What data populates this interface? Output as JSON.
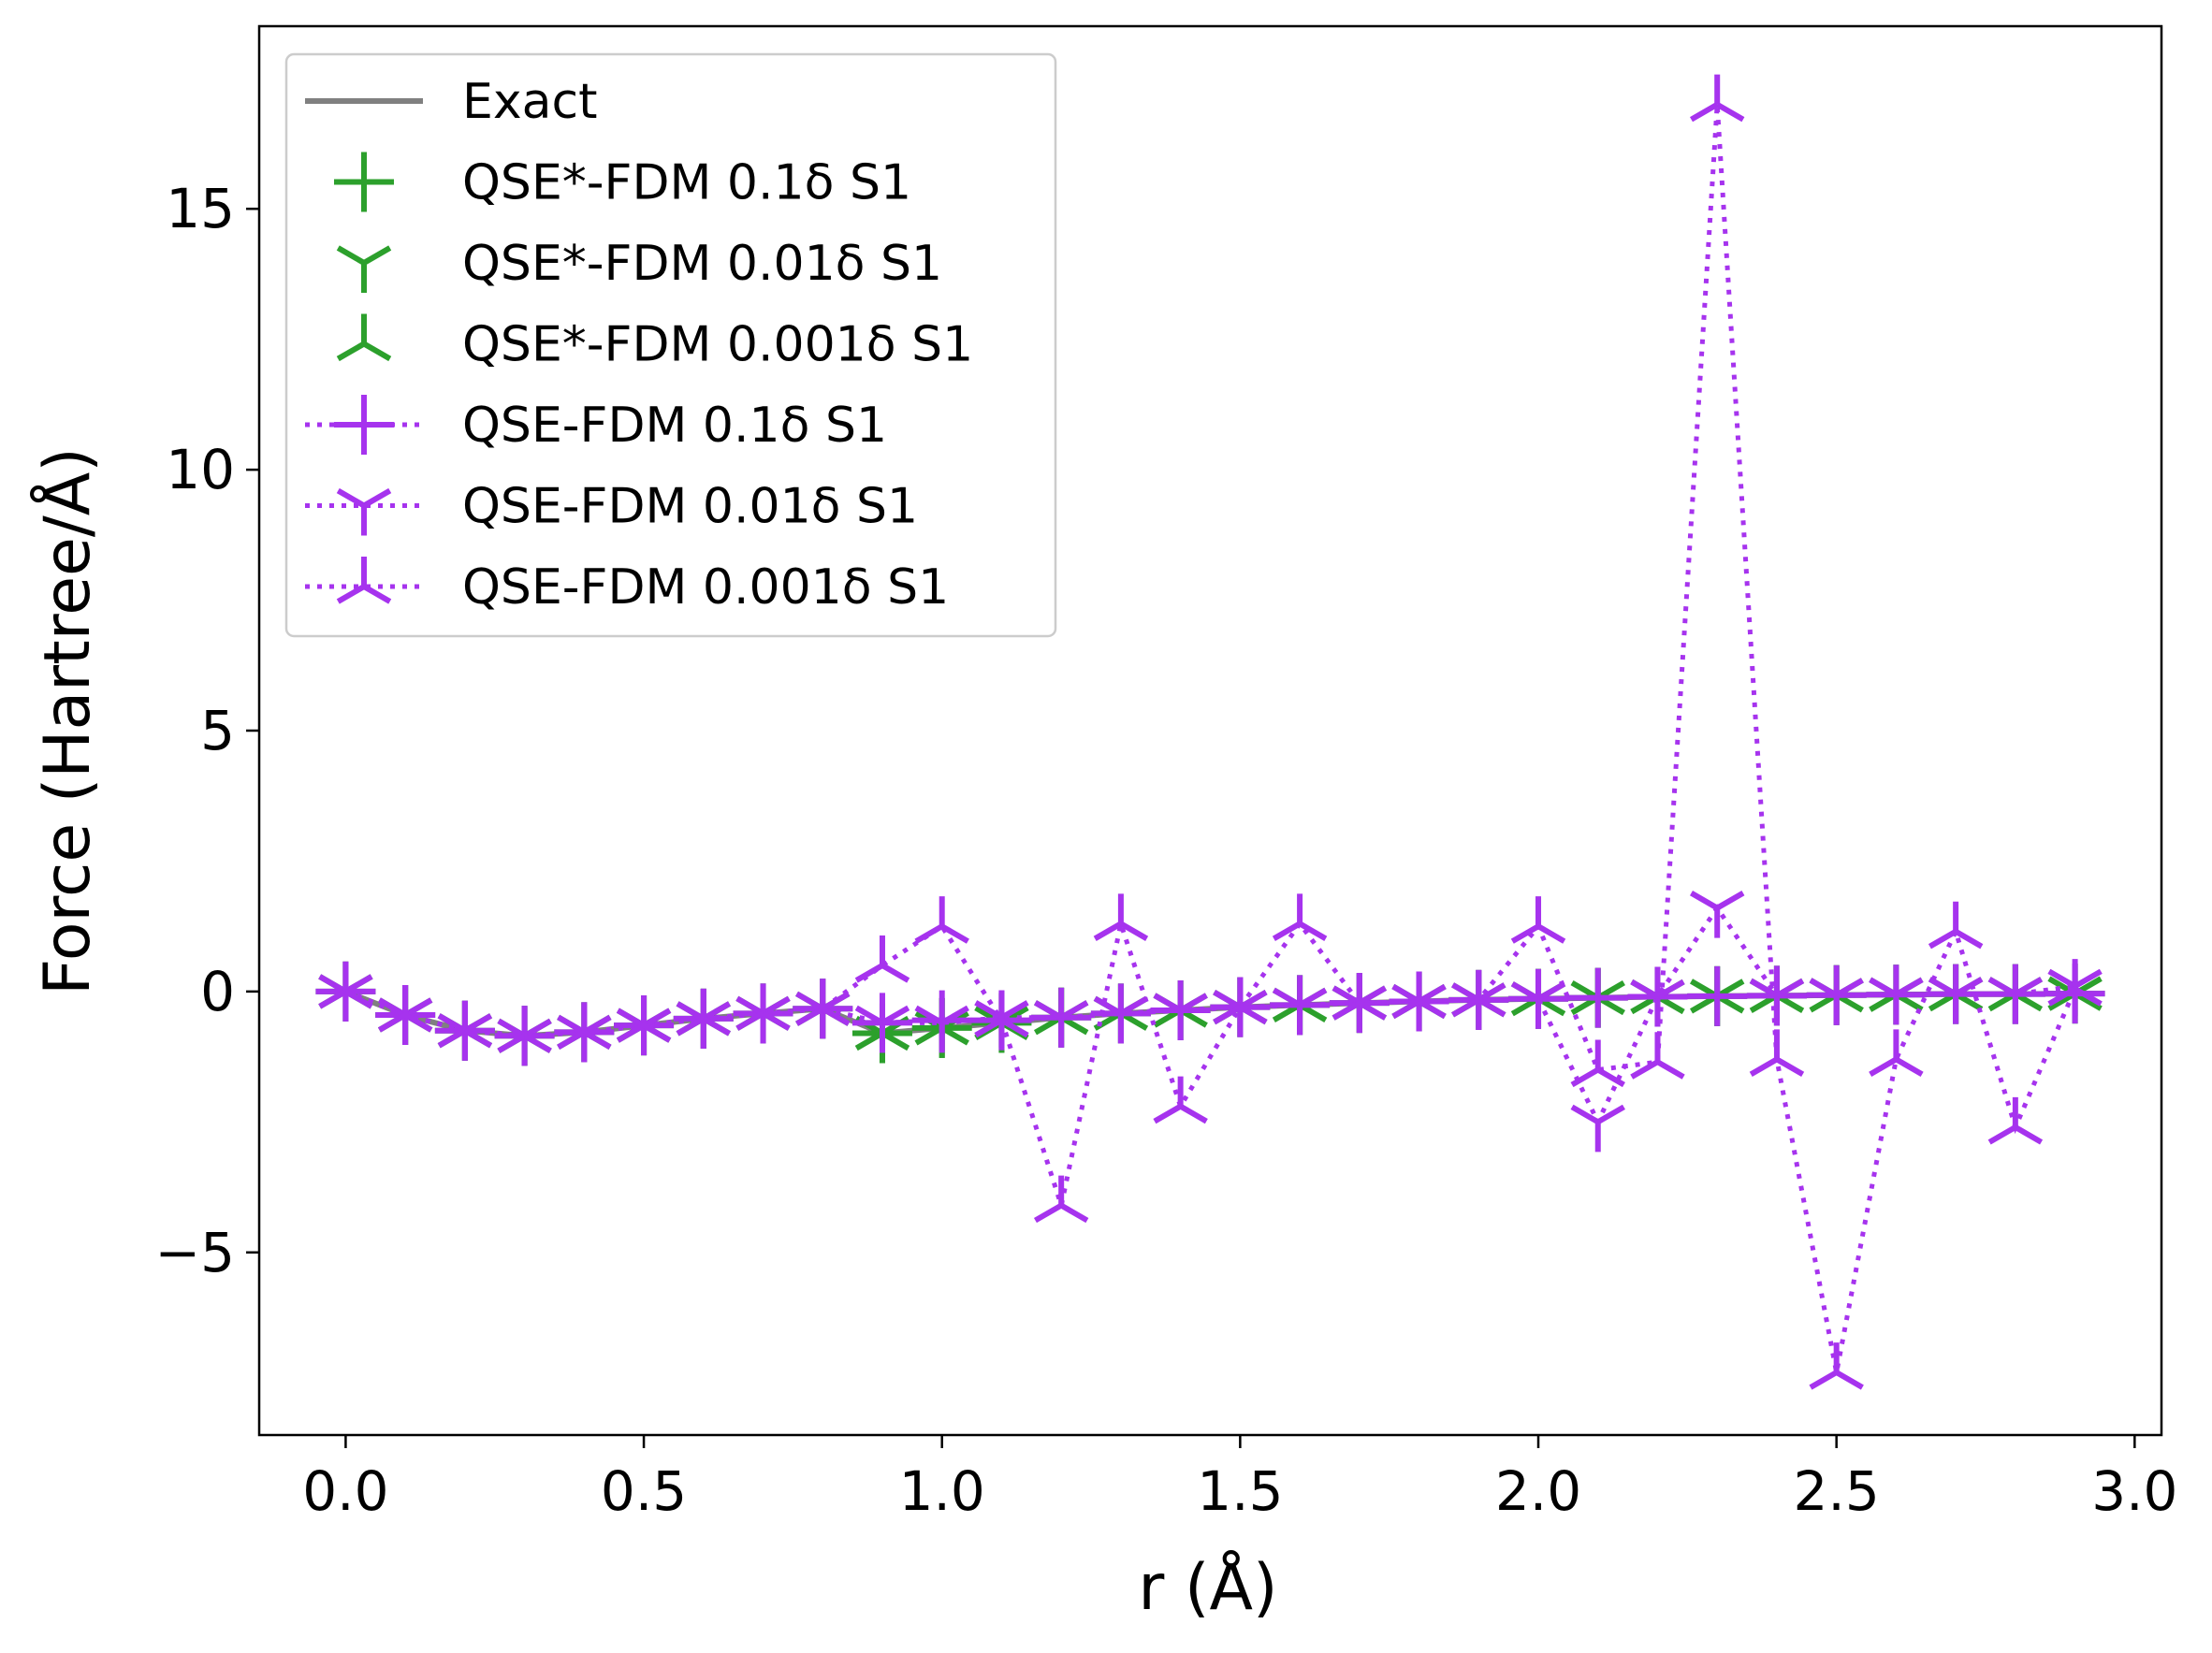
{
  "chart_data": {
    "type": "line",
    "xlabel": "r (Å)",
    "ylabel": "Force (Hartree/Å)",
    "xlim": [
      -0.145,
      3.045
    ],
    "ylim": [
      -8.5,
      18.5
    ],
    "xticks": [
      0.0,
      0.5,
      1.0,
      1.5,
      2.0,
      2.5,
      3.0
    ],
    "xtick_labels": [
      "0.0",
      "0.5",
      "1.0",
      "1.5",
      "2.0",
      "2.5",
      "3.0"
    ],
    "yticks": [
      -5,
      0,
      5,
      10,
      15
    ],
    "ytick_labels": [
      "−5",
      "0",
      "5",
      "10",
      "15"
    ],
    "grid": false,
    "legend_position": "top-left",
    "x": [
      0.0,
      0.1,
      0.2,
      0.3,
      0.4,
      0.5,
      0.6,
      0.7,
      0.8,
      0.9,
      1.0,
      1.1,
      1.2,
      1.3,
      1.4,
      1.5,
      1.6,
      1.7,
      1.8,
      1.9,
      2.0,
      2.1,
      2.2,
      2.3,
      2.4,
      2.5,
      2.6,
      2.7,
      2.8,
      2.9
    ],
    "series": [
      {
        "name": "Exact",
        "color": "#808080",
        "linestyle": "solid",
        "marker": "none",
        "values": [
          0.0,
          -0.45,
          -0.75,
          -0.85,
          -0.78,
          -0.65,
          -0.52,
          -0.42,
          -0.33,
          -0.8,
          -0.7,
          -0.6,
          -0.5,
          -0.42,
          -0.36,
          -0.3,
          -0.26,
          -0.22,
          -0.19,
          -0.16,
          -0.14,
          -0.12,
          -0.1,
          -0.09,
          -0.08,
          -0.07,
          -0.06,
          -0.05,
          -0.05,
          -0.04
        ]
      },
      {
        "name": "QSE*-FDM 0.1δ S1",
        "color": "#2ca02c",
        "linestyle": "none",
        "marker": "plus",
        "values": [
          0.0,
          -0.45,
          -0.75,
          -0.85,
          -0.78,
          -0.65,
          -0.52,
          -0.42,
          -0.33,
          -0.8,
          -0.7,
          -0.6,
          -0.5,
          -0.42,
          -0.36,
          -0.3,
          -0.26,
          -0.22,
          -0.19,
          -0.16,
          -0.14,
          -0.12,
          -0.1,
          -0.09,
          -0.08,
          -0.07,
          -0.06,
          -0.05,
          -0.05,
          -0.04
        ]
      },
      {
        "name": "QSE*-FDM 0.01δ S1",
        "color": "#2ca02c",
        "linestyle": "none",
        "marker": "tri_down",
        "values": [
          0.0,
          -0.45,
          -0.75,
          -0.85,
          -0.78,
          -0.65,
          -0.52,
          -0.42,
          -0.33,
          -0.8,
          -0.7,
          -0.6,
          -0.5,
          -0.42,
          -0.36,
          -0.3,
          -0.26,
          -0.22,
          -0.19,
          -0.16,
          -0.14,
          -0.12,
          -0.1,
          -0.09,
          -0.08,
          -0.07,
          -0.06,
          -0.05,
          -0.05,
          -0.04
        ]
      },
      {
        "name": "QSE*-FDM 0.001δ S1",
        "color": "#2ca02c",
        "linestyle": "none",
        "marker": "tri_up",
        "values": [
          0.0,
          -0.45,
          -0.75,
          -0.85,
          -0.78,
          -0.65,
          -0.52,
          -0.42,
          -0.33,
          -0.8,
          -0.7,
          -0.6,
          -0.5,
          -0.42,
          -0.36,
          -0.3,
          -0.26,
          -0.22,
          -0.19,
          -0.16,
          -0.14,
          -0.12,
          -0.1,
          -0.09,
          -0.08,
          -0.07,
          -0.06,
          -0.05,
          -0.05,
          -0.04
        ]
      },
      {
        "name": "QSE-FDM 0.1δ S1",
        "color": "#a633ee",
        "linestyle": "dotted",
        "marker": "plus",
        "values": [
          0.0,
          -0.45,
          -0.75,
          -0.85,
          -0.78,
          -0.65,
          -0.52,
          -0.42,
          -0.33,
          -0.6,
          -0.55,
          -0.55,
          -0.5,
          -0.42,
          -0.36,
          -0.3,
          -0.26,
          -0.22,
          -0.19,
          -0.16,
          -0.14,
          -0.12,
          -0.1,
          -0.09,
          -0.08,
          -0.07,
          -0.06,
          -0.05,
          -0.05,
          -0.04
        ]
      },
      {
        "name": "QSE-FDM 0.01δ S1",
        "color": "#a633ee",
        "linestyle": "dotted",
        "marker": "tri_down",
        "values": [
          0.0,
          -0.45,
          -0.75,
          -0.85,
          -0.78,
          -0.65,
          -0.52,
          -0.42,
          -0.33,
          -0.6,
          -0.6,
          -0.5,
          -0.5,
          -0.42,
          -0.36,
          -0.3,
          -0.26,
          -0.22,
          -0.19,
          -0.16,
          -0.14,
          -2.5,
          -0.1,
          1.6,
          -0.08,
          -0.07,
          -0.06,
          -0.05,
          -0.05,
          0.1
        ]
      },
      {
        "name": "QSE-FDM 0.001δ S1",
        "color": "#a633ee",
        "linestyle": "dotted",
        "marker": "tri_up",
        "values": [
          0.0,
          -0.45,
          -0.75,
          -0.85,
          -0.78,
          -0.65,
          -0.52,
          -0.42,
          -0.33,
          0.5,
          1.25,
          -0.55,
          -4.1,
          1.3,
          -2.2,
          -0.3,
          1.3,
          -0.22,
          -0.19,
          -0.16,
          1.25,
          -1.5,
          -1.35,
          17.0,
          -1.3,
          -7.3,
          -1.3,
          1.15,
          -2.6,
          0.05
        ]
      }
    ]
  }
}
